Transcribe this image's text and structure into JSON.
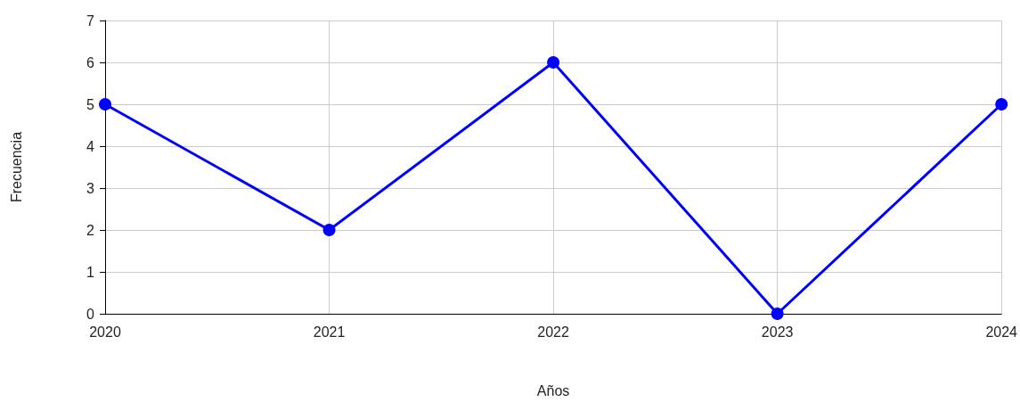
{
  "chart_data": {
    "type": "line",
    "xlabel": "Años",
    "ylabel": "Frecuencia",
    "categories": [
      "2020",
      "2021",
      "2022",
      "2023",
      "2024"
    ],
    "series": [
      {
        "color": "#0000ff",
        "values": [
          5,
          2,
          6,
          0,
          5
        ]
      }
    ],
    "ylim": [
      0,
      7
    ],
    "yticks": [
      0,
      1,
      2,
      3,
      4,
      5,
      6,
      7
    ],
    "grid": true,
    "marker": "circle",
    "line_style": "solid"
  }
}
